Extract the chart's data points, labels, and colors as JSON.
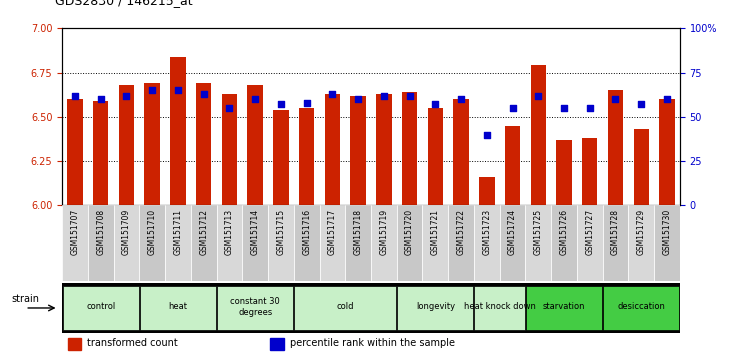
{
  "title": "GDS2830 / 146215_at",
  "samples": [
    "GSM151707",
    "GSM151708",
    "GSM151709",
    "GSM151710",
    "GSM151711",
    "GSM151712",
    "GSM151713",
    "GSM151714",
    "GSM151715",
    "GSM151716",
    "GSM151717",
    "GSM151718",
    "GSM151719",
    "GSM151720",
    "GSM151721",
    "GSM151722",
    "GSM151723",
    "GSM151724",
    "GSM151725",
    "GSM151726",
    "GSM151727",
    "GSM151728",
    "GSM151729",
    "GSM151730"
  ],
  "bar_values": [
    6.6,
    6.59,
    6.68,
    6.69,
    6.84,
    6.69,
    6.63,
    6.68,
    6.54,
    6.55,
    6.63,
    6.62,
    6.63,
    6.64,
    6.55,
    6.6,
    6.16,
    6.45,
    6.79,
    6.37,
    6.38,
    6.65,
    6.43,
    6.6
  ],
  "percentile_values": [
    62,
    60,
    62,
    65,
    65,
    63,
    55,
    60,
    57,
    58,
    63,
    60,
    62,
    62,
    57,
    60,
    40,
    55,
    62,
    55,
    55,
    60,
    57,
    60
  ],
  "bar_color": "#cc2200",
  "percentile_color": "#0000cc",
  "ylim_left": [
    6.0,
    7.0
  ],
  "ylim_right": [
    0,
    100
  ],
  "yticks_left": [
    6.0,
    6.25,
    6.5,
    6.75,
    7.0
  ],
  "yticks_right": [
    0,
    25,
    50,
    75,
    100
  ],
  "grid_values": [
    6.25,
    6.5,
    6.75
  ],
  "bar_width": 0.6,
  "groups": [
    {
      "label": "control",
      "indices": [
        0,
        1,
        2
      ],
      "color": "#c8f0c8"
    },
    {
      "label": "heat",
      "indices": [
        3,
        4,
        5
      ],
      "color": "#c8f0c8"
    },
    {
      "label": "constant 30\ndegrees",
      "indices": [
        6,
        7,
        8
      ],
      "color": "#c8f0c8"
    },
    {
      "label": "cold",
      "indices": [
        9,
        10,
        11,
        12
      ],
      "color": "#c8f0c8"
    },
    {
      "label": "longevity",
      "indices": [
        13,
        14,
        15
      ],
      "color": "#c8f0c8"
    },
    {
      "label": "heat knock down",
      "indices": [
        16,
        17
      ],
      "color": "#c8f0c8"
    },
    {
      "label": "starvation",
      "indices": [
        18,
        19,
        20
      ],
      "color": "#44cc44"
    },
    {
      "label": "desiccation",
      "indices": [
        21,
        22,
        23
      ],
      "color": "#44cc44"
    }
  ],
  "legend_items": [
    {
      "label": "transformed count",
      "color": "#cc2200"
    },
    {
      "label": "percentile rank within the sample",
      "color": "#0000cc"
    }
  ],
  "strain_label": "strain",
  "background_color": "#ffffff",
  "tick_label_color_left": "#cc2200",
  "tick_label_color_right": "#0000cc",
  "bar_base": 6.0,
  "sample_bg_color": "#d8d8d8",
  "sample_alt_bg_color": "#c8c8c8"
}
